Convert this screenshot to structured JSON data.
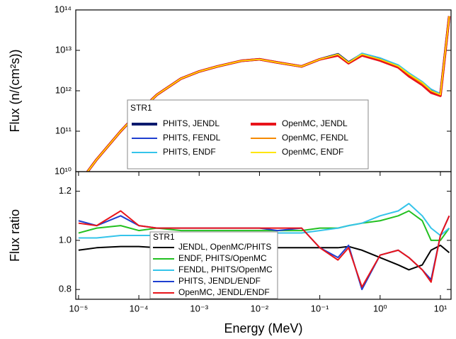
{
  "chart_data": [
    {
      "type": "line",
      "ylabel": "Flux (n/(cm²s))",
      "xlog": true,
      "ylog": true,
      "xlim": [
        9e-06,
        15
      ],
      "ylim": [
        10000000000.0,
        100000000000000.0
      ],
      "yticks": [
        {
          "value": 10000000000.0,
          "label": "10¹⁰"
        },
        {
          "value": 100000000000.0,
          "label": "10¹¹"
        },
        {
          "value": 1000000000000.0,
          "label": "10¹²"
        },
        {
          "value": 10000000000000.0,
          "label": "10¹³"
        },
        {
          "value": 100000000000000.0,
          "label": "10¹⁴"
        }
      ],
      "legend_title": "STR1",
      "legend": "lower center",
      "x": [
        1e-05,
        2e-05,
        5e-05,
        0.0001,
        0.0002,
        0.0005,
        0.001,
        0.002,
        0.005,
        0.01,
        0.02,
        0.05,
        0.1,
        0.2,
        0.3,
        0.5,
        1,
        2,
        3,
        5,
        7,
        10,
        14
      ],
      "series": [
        {
          "name": "PHITS, JENDL",
          "color": "#0b1a6e",
          "values": [
            5000000000.0,
            20000000000.0,
            100000000000.0,
            300000000000.0,
            800000000000.0,
            2000000000000.0,
            3000000000000.0,
            4000000000000.0,
            5500000000000.0,
            6000000000000.0,
            5000000000000.0,
            4000000000000.0,
            6000000000000.0,
            8000000000000.0,
            5000000000000.0,
            8000000000000.0,
            6000000000000.0,
            4000000000000.0,
            2500000000000.0,
            1500000000000.0,
            1000000000000.0,
            800000000000.0,
            70000000000000.0
          ]
        },
        {
          "name": "PHITS, FENDL",
          "color": "#1f3fd0",
          "values": [
            5000000000.0,
            20000000000.0,
            100000000000.0,
            300000000000.0,
            800000000000.0,
            2000000000000.0,
            3000000000000.0,
            4000000000000.0,
            5500000000000.0,
            6000000000000.0,
            5000000000000.0,
            4000000000000.0,
            6000000000000.0,
            8000000000000.0,
            5000000000000.0,
            8500000000000.0,
            6500000000000.0,
            4300000000000.0,
            2700000000000.0,
            1600000000000.0,
            1100000000000.0,
            850000000000.0,
            70000000000000.0
          ]
        },
        {
          "name": "PHITS, ENDF",
          "color": "#35c4ea",
          "values": [
            5000000000.0,
            20000000000.0,
            100000000000.0,
            300000000000.0,
            800000000000.0,
            2000000000000.0,
            3000000000000.0,
            4000000000000.0,
            5500000000000.0,
            6000000000000.0,
            5000000000000.0,
            4000000000000.0,
            6000000000000.0,
            8000000000000.0,
            5000000000000.0,
            8500000000000.0,
            6500000000000.0,
            4400000000000.0,
            2800000000000.0,
            1700000000000.0,
            1100000000000.0,
            850000000000.0,
            70000000000000.0
          ]
        },
        {
          "name": "OpenMC, JENDL",
          "color": "#e8141a",
          "values": [
            5000000000.0,
            20000000000.0,
            100000000000.0,
            300000000000.0,
            800000000000.0,
            2000000000000.0,
            3000000000000.0,
            4000000000000.0,
            5500000000000.0,
            6000000000000.0,
            5000000000000.0,
            4000000000000.0,
            6000000000000.0,
            7500000000000.0,
            4800000000000.0,
            7500000000000.0,
            5600000000000.0,
            3800000000000.0,
            2300000000000.0,
            1400000000000.0,
            900000000000.0,
            750000000000.0,
            70000000000000.0
          ]
        },
        {
          "name": "OpenMC, FENDL",
          "color": "#f58a00",
          "values": [
            5000000000.0,
            20000000000.0,
            100000000000.0,
            300000000000.0,
            800000000000.0,
            2000000000000.0,
            3000000000000.0,
            4000000000000.0,
            5500000000000.0,
            6000000000000.0,
            5000000000000.0,
            4000000000000.0,
            6000000000000.0,
            8000000000000.0,
            5000000000000.0,
            8000000000000.0,
            6000000000000.0,
            4000000000000.0,
            2500000000000.0,
            1500000000000.0,
            1000000000000.0,
            800000000000.0,
            70000000000000.0
          ]
        },
        {
          "name": "OpenMC, ENDF",
          "color": "#ffe600",
          "values": [
            5000000000.0,
            20000000000.0,
            100000000000.0,
            300000000000.0,
            800000000000.0,
            2000000000000.0,
            3000000000000.0,
            4000000000000.0,
            5500000000000.0,
            6000000000000.0,
            5000000000000.0,
            4000000000000.0,
            6000000000000.0,
            8000000000000.0,
            5000000000000.0,
            8000000000000.0,
            6000000000000.0,
            4100000000000.0,
            2600000000000.0,
            1600000000000.0,
            1000000000000.0,
            800000000000.0,
            70000000000000.0
          ]
        }
      ]
    },
    {
      "type": "line",
      "xlabel": "Energy (MeV)",
      "ylabel": "Flux ratio",
      "xlog": true,
      "ylog": false,
      "xlim": [
        9e-06,
        15
      ],
      "ylim": [
        0.76,
        1.28
      ],
      "xticks": [
        {
          "value": 1e-05,
          "label": "10⁻⁵"
        },
        {
          "value": 0.0001,
          "label": "10⁻⁴"
        },
        {
          "value": 0.001,
          "label": "10⁻³"
        },
        {
          "value": 0.01,
          "label": "10⁻²"
        },
        {
          "value": 0.1,
          "label": "10⁻¹"
        },
        {
          "value": 1,
          "label": "10⁰"
        },
        {
          "value": 10,
          "label": "10¹"
        }
      ],
      "yticks": [
        0.8,
        {
          "value": 1,
          "label": "1.0"
        },
        1.2
      ],
      "legend_title": "STR1",
      "legend": "lower center",
      "x": [
        1e-05,
        2e-05,
        5e-05,
        0.0001,
        0.0002,
        0.0005,
        0.001,
        0.002,
        0.005,
        0.01,
        0.02,
        0.05,
        0.1,
        0.2,
        0.3,
        0.5,
        1,
        2,
        3,
        5,
        7,
        10,
        14
      ],
      "series": [
        {
          "name": "JENDL, OpenMC/PHITS",
          "color": "#000000",
          "values": [
            0.96,
            0.97,
            0.975,
            0.975,
            0.97,
            0.97,
            0.97,
            0.975,
            0.975,
            0.975,
            0.97,
            0.97,
            0.97,
            0.97,
            0.975,
            0.96,
            0.93,
            0.9,
            0.88,
            0.9,
            0.96,
            0.98,
            0.95
          ]
        },
        {
          "name": "ENDF, PHITS/OpenMC",
          "color": "#22c020",
          "values": [
            1.03,
            1.05,
            1.06,
            1.04,
            1.05,
            1.04,
            1.04,
            1.04,
            1.04,
            1.04,
            1.04,
            1.04,
            1.05,
            1.05,
            1.06,
            1.07,
            1.08,
            1.1,
            1.12,
            1.08,
            1.0,
            1.0,
            1.05
          ]
        },
        {
          "name": "FENDL, PHITS/OpenMC",
          "color": "#35c4ea",
          "values": [
            1.01,
            1.01,
            1.02,
            1.02,
            1.02,
            1.02,
            1.02,
            1.02,
            1.03,
            1.03,
            1.03,
            1.03,
            1.04,
            1.05,
            1.06,
            1.07,
            1.1,
            1.12,
            1.15,
            1.1,
            1.05,
            1.02,
            1.05
          ]
        },
        {
          "name": "PHITS, JENDL/ENDF",
          "color": "#1f3fd0",
          "values": [
            1.08,
            1.06,
            1.1,
            1.06,
            1.05,
            1.05,
            1.05,
            1.05,
            1.05,
            1.05,
            1.04,
            1.05,
            0.97,
            0.93,
            0.98,
            0.8,
            0.94,
            0.96,
            0.93,
            0.88,
            0.84,
            1.02,
            1.1
          ]
        },
        {
          "name": "OpenMC, JENDL/ENDF",
          "color": "#e8141a",
          "values": [
            1.07,
            1.06,
            1.12,
            1.06,
            1.05,
            1.05,
            1.05,
            1.05,
            1.05,
            1.05,
            1.05,
            1.05,
            0.97,
            0.92,
            0.97,
            0.81,
            0.94,
            0.96,
            0.93,
            0.88,
            0.83,
            1.02,
            1.1
          ]
        }
      ]
    }
  ]
}
